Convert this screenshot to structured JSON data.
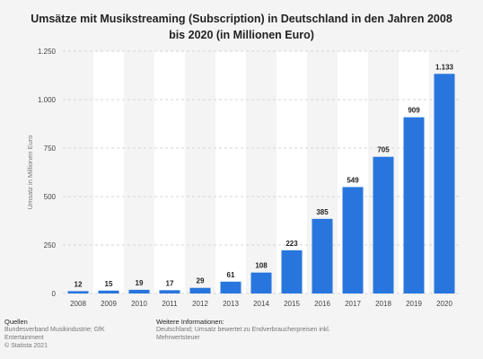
{
  "title_lines": [
    "Umsätze mit Musikstreaming (Subscription) in Deutschland in den Jahren 2008",
    "bis 2020 (in Millionen Euro)"
  ],
  "chart_data": {
    "type": "bar",
    "categories": [
      "2008",
      "2009",
      "2010",
      "2011",
      "2012",
      "2013",
      "2014",
      "2015",
      "2016",
      "2017",
      "2018",
      "2019",
      "2020"
    ],
    "values": [
      12,
      15,
      19,
      17,
      29,
      61,
      108,
      223,
      385,
      549,
      705,
      909,
      1133
    ],
    "value_labels": [
      "12",
      "15",
      "19",
      "17",
      "29",
      "61",
      "108",
      "223",
      "385",
      "549",
      "705",
      "909",
      "1.133"
    ],
    "ylabel": "Umsatz in Millionen Euro",
    "ylim": [
      0,
      1250
    ],
    "yticks": [
      0,
      250,
      500,
      750,
      1000,
      1250
    ],
    "ytick_labels": [
      "0",
      "250",
      "500",
      "750",
      "1.000",
      "1.250"
    ],
    "grid": true,
    "bar_color": "#2876dd"
  },
  "footer": {
    "sources_heading": "Quellen",
    "sources_lines": [
      "Bundesverband Musikindustrie; GfK",
      "Entertainment",
      "© Statista 2021"
    ],
    "info_heading": "Weitere Informationen:",
    "info_lines": [
      "Deutschland; Umsatz bewertet zu Endverbraucherpreisen inkl.",
      "Mehrwertsteuer"
    ]
  }
}
